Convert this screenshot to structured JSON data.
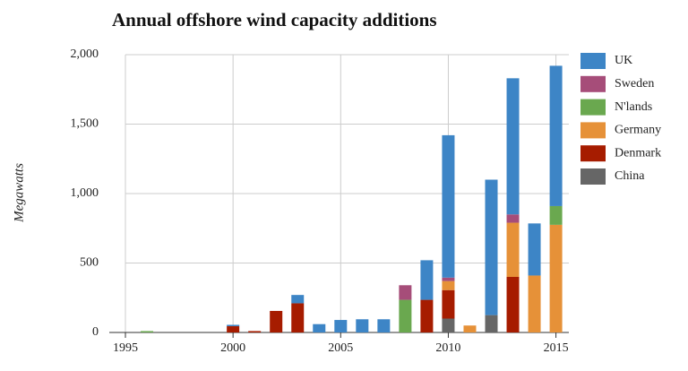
{
  "chart_data": {
    "type": "stacked_bar",
    "title": "Annual offshore wind capacity additions",
    "y_label": "Megawatts",
    "x": [
      1996,
      2000,
      2001,
      2002,
      2003,
      2004,
      2005,
      2006,
      2007,
      2008,
      2009,
      2010,
      2011,
      2012,
      2013,
      2014,
      2015
    ],
    "series": [
      {
        "name": "UK",
        "color": "#3d85c6",
        "values": [
          0,
          10,
          0,
          0,
          60,
          60,
          90,
          95,
          95,
          0,
          285,
          1025,
          0,
          975,
          980,
          375,
          1010
        ]
      },
      {
        "name": "Sweden",
        "color": "#a64d79",
        "values": [
          0,
          0,
          0,
          0,
          0,
          0,
          0,
          0,
          0,
          105,
          0,
          25,
          0,
          0,
          60,
          0,
          0
        ]
      },
      {
        "name": "N'lands",
        "color": "#6aa84f",
        "values": [
          10,
          0,
          0,
          0,
          0,
          0,
          0,
          0,
          0,
          235,
          0,
          0,
          0,
          0,
          0,
          0,
          135
        ]
      },
      {
        "name": "Germany",
        "color": "#e69138",
        "values": [
          0,
          0,
          0,
          0,
          0,
          0,
          0,
          0,
          0,
          0,
          0,
          65,
          50,
          0,
          390,
          410,
          775
        ]
      },
      {
        "name": "Denmark",
        "color": "#a61c00",
        "values": [
          0,
          45,
          10,
          155,
          210,
          0,
          0,
          0,
          0,
          0,
          235,
          205,
          0,
          0,
          400,
          0,
          0
        ]
      },
      {
        "name": "China",
        "color": "#666666",
        "values": [
          0,
          0,
          0,
          0,
          0,
          0,
          0,
          0,
          0,
          0,
          0,
          100,
          0,
          125,
          0,
          0,
          0
        ]
      }
    ],
    "xlim": [
      1995,
      2015.6
    ],
    "xticks": [
      1995,
      2000,
      2005,
      2010,
      2015
    ],
    "ylim": [
      0,
      2000
    ],
    "yticks": [
      0,
      500,
      {
        "value": 1000,
        "label": "1,000"
      },
      {
        "value": 1500,
        "label": "1,500"
      },
      {
        "value": 2000,
        "label": "2,000"
      }
    ],
    "grid": true,
    "legend": "right"
  }
}
